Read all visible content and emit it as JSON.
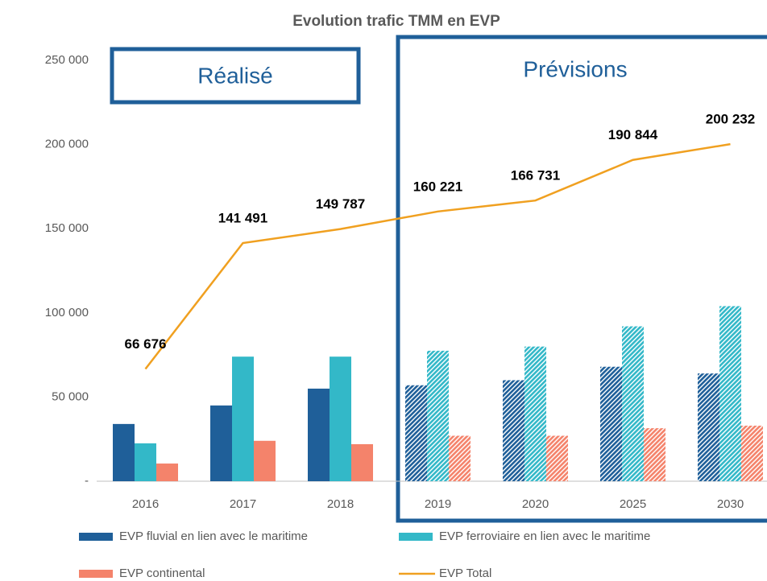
{
  "chart_data": {
    "type": "bar",
    "title": "Evolution trafic TMM en EVP",
    "categories": [
      "2016",
      "2017",
      "2018",
      "2019",
      "2020",
      "2025",
      "2030"
    ],
    "hatched": [
      false,
      false,
      false,
      true,
      true,
      true,
      true
    ],
    "series": [
      {
        "name": "EVP fluvial en lien avec le maritime",
        "type": "bar",
        "color": "#1f5f99",
        "values": [
          34000,
          45000,
          55000,
          57000,
          60000,
          68000,
          64000
        ]
      },
      {
        "name": "EVP ferroviaire en lien avec le maritime",
        "type": "bar",
        "color": "#33b8c8",
        "values": [
          22500,
          74000,
          74000,
          77500,
          80000,
          92000,
          104000
        ]
      },
      {
        "name": "EVP continental",
        "type": "bar",
        "color": "#f4836b",
        "values": [
          10500,
          24000,
          22000,
          27000,
          27000,
          31500,
          33000
        ]
      },
      {
        "name": "EVP Total",
        "type": "line",
        "color": "#f0a020",
        "values": [
          66676,
          141491,
          149787,
          160221,
          166731,
          190844,
          200232
        ],
        "value_labels": [
          "66 676",
          "141 491",
          "149 787",
          "160 221",
          "166 731",
          "190 844",
          "200 232"
        ]
      }
    ],
    "annotations": [
      {
        "text": "Réalisé"
      },
      {
        "text": "Prévisions"
      }
    ],
    "ylim": [
      0,
      250000
    ],
    "yticks": [
      {
        "value": 0,
        "label": "-"
      },
      {
        "value": 50000,
        "label": "50 000"
      },
      {
        "value": 100000,
        "label": "100 000"
      },
      {
        "value": 150000,
        "label": "150 000"
      },
      {
        "value": 200000,
        "label": "200 000"
      },
      {
        "value": 250000,
        "label": "250 000"
      }
    ],
    "grid": false
  }
}
